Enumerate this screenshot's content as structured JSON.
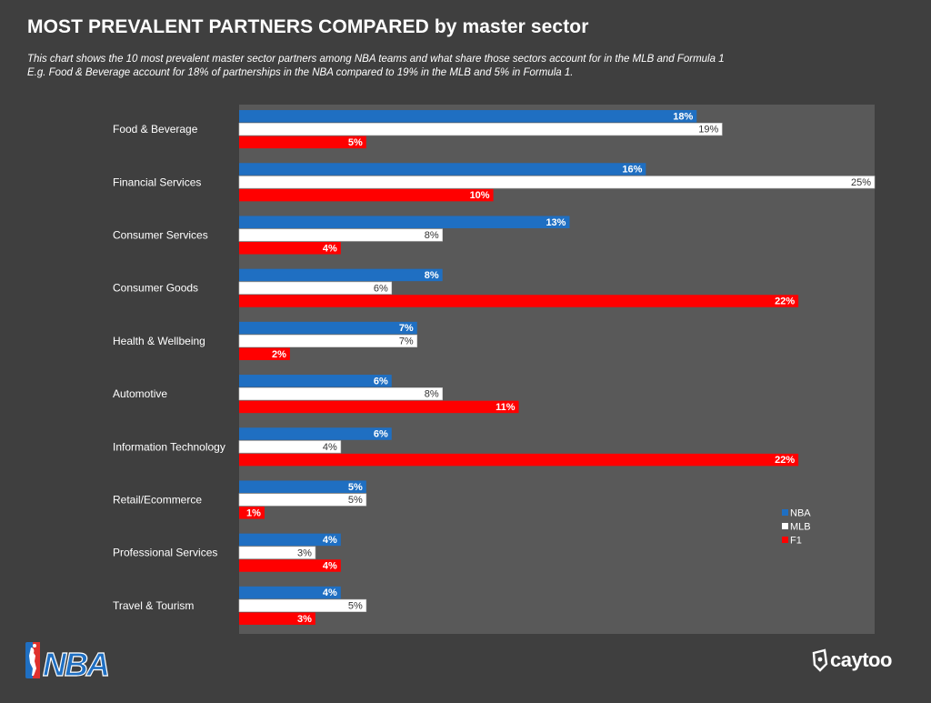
{
  "header": {
    "title": "MOST PREVALENT PARTNERS COMPARED by master sector",
    "subtitle_line1": "This chart shows the 10 most prevalent master sector partners among NBA teams and what share those sectors account for in the MLB and Formula 1",
    "subtitle_line2": "E.g. Food & Beverage account for 18% of partnerships in the NBA compared to 19% in the MLB and 5% in Formula 1."
  },
  "colors": {
    "background": "#3f3f3f",
    "plot_area": "#595959",
    "nba": "#1f6fc2",
    "mlb": "#ffffff",
    "f1": "#ff0000"
  },
  "logos": {
    "nba": "NBA",
    "caytoo": "caytoo"
  },
  "chart_data": {
    "type": "bar",
    "orientation": "horizontal",
    "categories": [
      "Food & Beverage",
      "Financial Services",
      "Consumer Services",
      "Consumer Goods",
      "Health & Wellbeing",
      "Automotive",
      "Information Technology",
      "Retail/Ecommerce",
      "Professional Services",
      "Travel & Tourism"
    ],
    "series": [
      {
        "name": "NBA",
        "values": [
          18,
          16,
          13,
          8,
          7,
          6,
          6,
          5,
          4,
          4
        ]
      },
      {
        "name": "MLB",
        "values": [
          19,
          25,
          8,
          6,
          7,
          8,
          4,
          5,
          3,
          5
        ]
      },
      {
        "name": "F1",
        "values": [
          5,
          10,
          4,
          22,
          2,
          11,
          22,
          1,
          4,
          3
        ]
      }
    ],
    "value_suffix": "%",
    "xlim": [
      0,
      25
    ],
    "grid": false,
    "legend_position": "right",
    "data_labels": true
  }
}
